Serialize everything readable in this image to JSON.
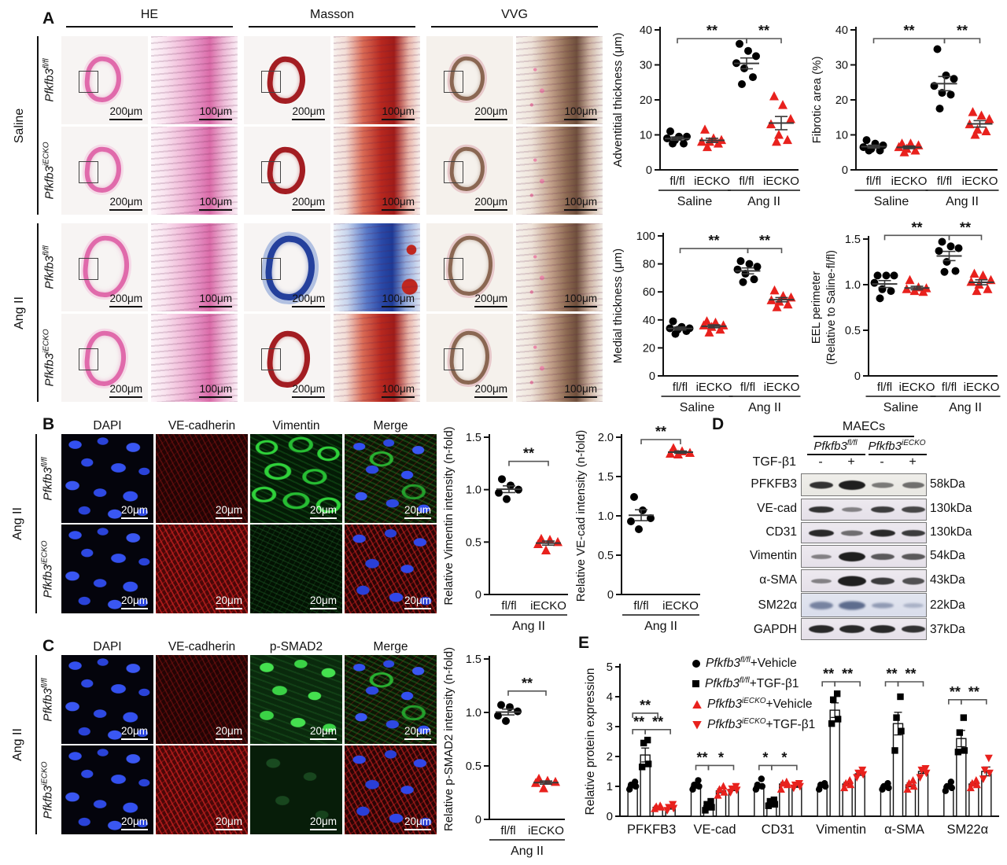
{
  "figure": {
    "panel_a": "A",
    "panel_b": "B",
    "panel_c": "C",
    "panel_d": "D",
    "panel_e": "E"
  },
  "labels": {
    "gene": "Pfkfb3",
    "sup_flfl": "fl/fl",
    "sup_iecko": "iECKO",
    "saline": "Saline",
    "angii": "Ang II",
    "scale200": "200μm",
    "scale100": "100μm",
    "scale20": "20μm"
  },
  "panelA": {
    "stains": [
      "HE",
      "Masson",
      "VVG"
    ]
  },
  "panelB": {
    "columns": [
      "DAPI",
      "VE-cadherin",
      "Vimentin",
      "Merge"
    ]
  },
  "panelC": {
    "columns": [
      "DAPI",
      "VE-cadherin",
      "p-SMAD2",
      "Merge"
    ]
  },
  "panelD": {
    "title": "MAECs",
    "treatment_label": "TGF-β1",
    "treatment_signs": [
      "-",
      "+",
      "-",
      "+"
    ],
    "rows": [
      {
        "protein": "PFKFB3",
        "kda": "58kDa"
      },
      {
        "protein": "VE-cad",
        "kda": "130kDa"
      },
      {
        "protein": "CD31",
        "kda": "130kDa"
      },
      {
        "protein": "Vimentin",
        "kda": "54kDa"
      },
      {
        "protein": "α-SMA",
        "kda": "43kDa"
      },
      {
        "protein": "SM22α",
        "kda": "22kDa"
      },
      {
        "protein": "GAPDH",
        "kda": "37kDa"
      }
    ]
  },
  "panelE": {
    "legend": [
      {
        "marker": "circle",
        "color": "#000000",
        "gene": "Pfkfb3",
        "sup": "fl/fl",
        "post": "+Vehicle"
      },
      {
        "marker": "square",
        "color": "#000000",
        "gene": "Pfkfb3",
        "sup": "fl/fl",
        "post": "+TGF-β1"
      },
      {
        "marker": "tri",
        "color": "#e8211d",
        "gene": "Pfkfb3",
        "sup": "iECKO",
        "post": "+Vehicle"
      },
      {
        "marker": "trid",
        "color": "#e8211d",
        "gene": "Pfkfb3",
        "sup": "iECKO",
        "post": "+TGF-β1"
      }
    ]
  },
  "chart_data": [
    {
      "type": "strip",
      "name": "adventitial-thickness",
      "ylabel": "Adventitial thickness (μm)",
      "ylim": [
        0,
        40
      ],
      "ml": 64,
      "ticks": [
        {
          "v": 0,
          "t": "0"
        },
        {
          "v": 10,
          "t": "10"
        },
        {
          "v": 20,
          "t": "20"
        },
        {
          "v": 30,
          "t": "30"
        },
        {
          "v": 40,
          "t": "40"
        }
      ],
      "groups": [
        "fl/fl",
        "iECKO",
        "fl/fl",
        "iECKO"
      ],
      "conds": [
        {
          "label": "Saline",
          "from": 0,
          "to": 1
        },
        {
          "label": "Ang II",
          "from": 2,
          "to": 3
        }
      ],
      "series": [
        {
          "marker": "circle",
          "color": "#000000",
          "values": [
            11,
            9.5,
            9.5,
            9,
            8.5,
            7.5,
            7.5
          ]
        },
        {
          "marker": "tri",
          "color": "#e8211d",
          "values": [
            11.5,
            9,
            8.5,
            8,
            8,
            7.5,
            6.5
          ]
        },
        {
          "marker": "circle",
          "color": "#000000",
          "values": [
            36,
            34,
            32.5,
            30.5,
            29,
            26.5,
            24.5
          ]
        },
        {
          "marker": "tri",
          "color": "#e8211d",
          "values": [
            21,
            18.5,
            14.5,
            13,
            10,
            8.5,
            8
          ]
        }
      ],
      "sig": [
        {
          "a": 0,
          "b": 2,
          "v": 37.5,
          "label": "**"
        },
        {
          "a": 2,
          "b": 3,
          "v": 37.5,
          "label": "**"
        }
      ]
    },
    {
      "type": "strip",
      "name": "fibrotic-area",
      "ylabel": "Fibrotic area (%)",
      "ylim": [
        0,
        40
      ],
      "ml": 60,
      "ticks": [
        {
          "v": 0,
          "t": "0"
        },
        {
          "v": 10,
          "t": "10"
        },
        {
          "v": 20,
          "t": "20"
        },
        {
          "v": 30,
          "t": "30"
        },
        {
          "v": 40,
          "t": "40"
        }
      ],
      "groups": [
        "fl/fl",
        "iECKO",
        "fl/fl",
        "iECKO"
      ],
      "conds": [
        {
          "label": "Saline",
          "from": 0,
          "to": 1
        },
        {
          "label": "Ang II",
          "from": 2,
          "to": 3
        }
      ],
      "series": [
        {
          "marker": "circle",
          "color": "#000000",
          "values": [
            8.5,
            7.5,
            7,
            6.5,
            6,
            5.5,
            5.5
          ]
        },
        {
          "marker": "tri",
          "color": "#e8211d",
          "values": [
            7.5,
            7.5,
            7,
            6.5,
            6,
            5.5,
            5
          ]
        },
        {
          "marker": "circle",
          "color": "#000000",
          "values": [
            34.5,
            27,
            26,
            24,
            22,
            21.5,
            17.5
          ]
        },
        {
          "marker": "tri",
          "color": "#e8211d",
          "values": [
            16.5,
            15.5,
            14.5,
            13,
            11.5,
            11,
            10
          ]
        }
      ],
      "sig": [
        {
          "a": 0,
          "b": 2,
          "v": 37.5,
          "label": "**"
        },
        {
          "a": 2,
          "b": 3,
          "v": 37.5,
          "label": "**"
        }
      ]
    },
    {
      "type": "strip",
      "name": "medial-thickness",
      "ylabel": "Medial thickness (μm)",
      "ylim": [
        0,
        100
      ],
      "ml": 68,
      "ticks": [
        {
          "v": 0,
          "t": "0"
        },
        {
          "v": 20,
          "t": "20"
        },
        {
          "v": 40,
          "t": "40"
        },
        {
          "v": 60,
          "t": "60"
        },
        {
          "v": 80,
          "t": "80"
        },
        {
          "v": 100,
          "t": "100"
        }
      ],
      "groups": [
        "fl/fl",
        "iECKO",
        "fl/fl",
        "iECKO"
      ],
      "conds": [
        {
          "label": "Saline",
          "from": 0,
          "to": 1
        },
        {
          "label": "Ang II",
          "from": 2,
          "to": 3
        }
      ],
      "series": [
        {
          "marker": "circle",
          "color": "#000000",
          "values": [
            39,
            35,
            34,
            34,
            33,
            32,
            30
          ]
        },
        {
          "marker": "tri",
          "color": "#e8211d",
          "values": [
            39,
            38,
            36,
            36,
            35,
            33,
            31
          ]
        },
        {
          "marker": "circle",
          "color": "#000000",
          "values": [
            82,
            80,
            78,
            76,
            73,
            69,
            67
          ]
        },
        {
          "marker": "tri",
          "color": "#e8211d",
          "values": [
            61,
            57,
            56,
            54,
            53,
            51,
            49
          ]
        }
      ],
      "sig": [
        {
          "a": 0,
          "b": 2,
          "v": 91,
          "label": "**"
        },
        {
          "a": 2,
          "b": 3,
          "v": 91,
          "label": "**"
        }
      ]
    },
    {
      "type": "strip",
      "name": "eel-perimeter",
      "ylabel": "EEL perimeter",
      "ylabel2": "(Relative to Saline-fl/fl)",
      "ylim": [
        0,
        1.5
      ],
      "ml": 76,
      "mt": 22,
      "ticks": [
        {
          "v": 0,
          "t": "0"
        },
        {
          "v": 0.5,
          "t": "0.5"
        },
        {
          "v": 1.0,
          "t": "1.0"
        },
        {
          "v": 1.5,
          "t": "1.5"
        }
      ],
      "groups": [
        "fl/fl",
        "iECKO",
        "fl/fl",
        "iECKO"
      ],
      "conds": [
        {
          "label": "Saline",
          "from": 0,
          "to": 1
        },
        {
          "label": "Ang II",
          "from": 2,
          "to": 3
        }
      ],
      "series": [
        {
          "marker": "circle",
          "color": "#000000",
          "values": [
            1.1,
            1.1,
            1.1,
            1.02,
            0.95,
            0.93,
            0.85
          ]
        },
        {
          "marker": "tri",
          "color": "#e8211d",
          "values": [
            1.05,
            0.97,
            0.96,
            0.95,
            0.93,
            0.92
          ]
        },
        {
          "marker": "circle",
          "color": "#000000",
          "values": [
            1.47,
            1.42,
            1.4,
            1.37,
            1.25,
            1.15,
            1.14
          ]
        },
        {
          "marker": "tri",
          "color": "#e8211d",
          "values": [
            1.12,
            1.1,
            1.05,
            1.03,
            1.0,
            0.95,
            0.93
          ]
        }
      ],
      "sig": [
        {
          "a": 0,
          "b": 2,
          "v": 1.54,
          "label": "**"
        },
        {
          "a": 2,
          "b": 3,
          "v": 1.54,
          "label": "**"
        }
      ]
    },
    {
      "type": "strip",
      "name": "vimentin-intensity",
      "ylabel": "Relative Vimentin intensity (n-fold)",
      "ylim": [
        0,
        1.5
      ],
      "ml": 62,
      "mt": 20,
      "ticks": [
        {
          "v": 0,
          "t": "0"
        },
        {
          "v": 0.5,
          "t": "0.5"
        },
        {
          "v": 1.0,
          "t": "1.0"
        },
        {
          "v": 1.5,
          "t": "1.5"
        }
      ],
      "groups": [
        "fl/fl",
        "iECKO"
      ],
      "conds": [
        {
          "label": "Ang II",
          "from": 0,
          "to": 1
        }
      ],
      "series": [
        {
          "marker": "circle",
          "color": "#000000",
          "values": [
            1.1,
            1.04,
            1.0,
            0.97,
            0.91
          ]
        },
        {
          "marker": "tri",
          "color": "#e8211d",
          "values": [
            0.53,
            0.52,
            0.5,
            0.48,
            0.42
          ]
        }
      ],
      "sig": [
        {
          "a": 0,
          "b": 1,
          "v": 1.27,
          "label": "**"
        }
      ]
    },
    {
      "type": "strip",
      "name": "vecad-intensity",
      "ylabel": "Relative VE-cad intensity (n-fold)",
      "ylim": [
        0,
        2.0
      ],
      "ml": 62,
      "mt": 20,
      "ticks": [
        {
          "v": 0,
          "t": "0"
        },
        {
          "v": 0.5,
          "t": "0.5"
        },
        {
          "v": 1.0,
          "t": "1.0"
        },
        {
          "v": 1.5,
          "t": "1.5"
        },
        {
          "v": 2.0,
          "t": "2.0"
        }
      ],
      "groups": [
        "fl/fl",
        "iECKO"
      ],
      "conds": [
        {
          "label": "Ang II",
          "from": 0,
          "to": 1
        }
      ],
      "series": [
        {
          "marker": "circle",
          "color": "#000000",
          "values": [
            1.24,
            1.07,
            0.97,
            0.93,
            0.83
          ]
        },
        {
          "marker": "tri",
          "color": "#e8211d",
          "values": [
            1.86,
            1.82,
            1.8,
            1.79,
            1.78
          ]
        }
      ],
      "sig": [
        {
          "a": 0,
          "b": 1,
          "v": 1.97,
          "label": "**"
        }
      ]
    },
    {
      "type": "strip",
      "name": "psmad2-intensity",
      "ylabel": "Relative p-SMAD2 intensity (n-fold)",
      "ylim": [
        0,
        1.5
      ],
      "ml": 62,
      "mt": 20,
      "ticks": [
        {
          "v": 0,
          "t": "0"
        },
        {
          "v": 0.5,
          "t": "0.5"
        },
        {
          "v": 1.0,
          "t": "1.0"
        },
        {
          "v": 1.5,
          "t": "1.5"
        }
      ],
      "groups": [
        "fl/fl",
        "iECKO"
      ],
      "conds": [
        {
          "label": "Ang II",
          "from": 0,
          "to": 1
        }
      ],
      "series": [
        {
          "marker": "circle",
          "color": "#000000",
          "values": [
            1.07,
            1.05,
            1.01,
            0.97,
            0.92
          ]
        },
        {
          "marker": "tri",
          "color": "#e8211d",
          "values": [
            0.38,
            0.36,
            0.35,
            0.34,
            0.29
          ]
        }
      ],
      "sig": [
        {
          "a": 0,
          "b": 1,
          "v": 1.2,
          "label": "**"
        }
      ]
    },
    {
      "type": "bar",
      "name": "protein-expression",
      "ylabel": "Relative protein expression",
      "ylim": [
        0,
        5
      ],
      "ticks": [
        0,
        1,
        2,
        3,
        4,
        5
      ],
      "categories": [
        "PFKFB3",
        "VE-cad",
        "CD31",
        "Vimentin",
        "α-SMA",
        "SM22α"
      ],
      "series": [
        {
          "marker": "circle",
          "color": "#000000",
          "values": [
            1.0,
            1.0,
            1.0,
            1.0,
            1.0,
            1.0
          ],
          "points": [
            [
              0.9,
              1.0,
              1.05,
              1.15
            ],
            [
              0.9,
              1.0,
              1.05,
              1.2
            ],
            [
              0.9,
              1.0,
              1.05,
              1.25
            ],
            [
              0.9,
              1.0,
              1.05,
              1.1
            ],
            [
              0.9,
              0.95,
              1.0,
              1.1
            ],
            [
              0.85,
              0.95,
              1.0,
              1.15
            ]
          ]
        },
        {
          "marker": "square",
          "color": "#000000",
          "values": [
            2.05,
            0.35,
            0.45,
            3.55,
            3.1,
            2.6
          ],
          "points": [
            [
              1.65,
              1.75,
              2.45,
              2.55
            ],
            [
              0.2,
              0.3,
              0.4,
              0.5
            ],
            [
              0.35,
              0.4,
              0.5,
              0.55
            ],
            [
              3.1,
              3.25,
              3.9,
              4.1
            ],
            [
              2.2,
              2.85,
              3.3,
              4.0
            ],
            [
              2.15,
              2.2,
              2.8,
              3.3
            ]
          ]
        },
        {
          "marker": "tri",
          "color": "#e8211d",
          "values": [
            0.3,
            0.85,
            1.08,
            1.08,
            1.05,
            1.08
          ],
          "points": [
            [
              0.25,
              0.3,
              0.32,
              0.35
            ],
            [
              0.7,
              0.8,
              0.9,
              1.0
            ],
            [
              0.9,
              1.05,
              1.1,
              1.15
            ],
            [
              0.95,
              1.05,
              1.1,
              1.2
            ],
            [
              0.9,
              1.0,
              1.1,
              1.2
            ],
            [
              0.95,
              1.05,
              1.1,
              1.2
            ]
          ]
        },
        {
          "marker": "trid",
          "color": "#e8211d",
          "values": [
            0.28,
            0.9,
            1.0,
            1.42,
            1.5,
            1.5
          ],
          "points": [
            [
              0.2,
              0.27,
              0.3,
              0.4
            ],
            [
              0.8,
              0.88,
              0.92,
              1.0
            ],
            [
              0.95,
              1.0,
              1.05,
              1.1
            ],
            [
              1.3,
              1.4,
              1.45,
              1.55
            ],
            [
              1.3,
              1.45,
              1.55,
              1.6
            ],
            [
              1.25,
              1.45,
              1.55,
              1.95
            ]
          ]
        }
      ],
      "sig": [
        [
          {
            "a": 0,
            "b": 2,
            "v": 3.45,
            "label": "**"
          },
          {
            "a": 0,
            "b": 1,
            "v": 2.9,
            "label": "**"
          },
          {
            "a": 1,
            "b": 3,
            "v": 2.9,
            "label": "**"
          }
        ],
        [
          {
            "a": 0,
            "b": 1,
            "v": 1.7,
            "label": "**"
          },
          {
            "a": 1,
            "b": 3,
            "v": 1.7,
            "label": "*"
          }
        ],
        [
          {
            "a": 0,
            "b": 1,
            "v": 1.7,
            "label": "*"
          },
          {
            "a": 1,
            "b": 3,
            "v": 1.7,
            "label": "*"
          }
        ],
        [
          {
            "a": 0,
            "b": 1,
            "v": 4.5,
            "label": "**"
          },
          {
            "a": 1,
            "b": 3,
            "v": 4.5,
            "label": "**"
          }
        ],
        [
          {
            "a": 0,
            "b": 1,
            "v": 4.5,
            "label": "**"
          },
          {
            "a": 1,
            "b": 3,
            "v": 4.5,
            "label": "**"
          }
        ],
        [
          {
            "a": 0,
            "b": 1,
            "v": 3.9,
            "label": "**"
          },
          {
            "a": 1,
            "b": 3,
            "v": 3.9,
            "label": "**"
          }
        ]
      ]
    }
  ]
}
